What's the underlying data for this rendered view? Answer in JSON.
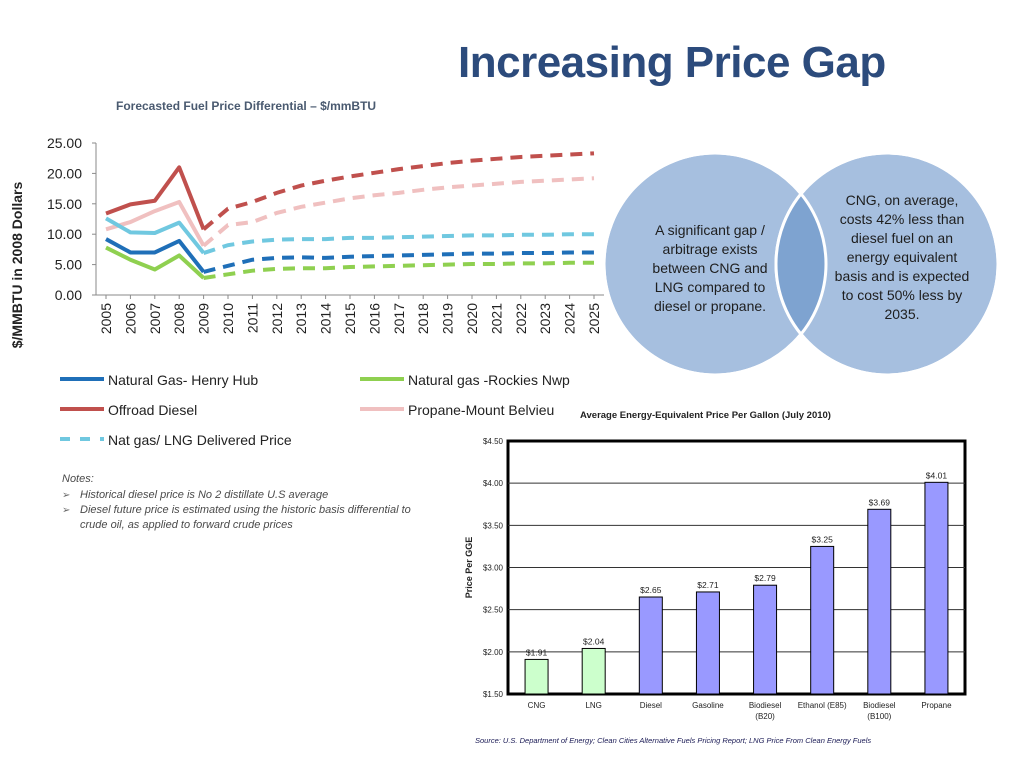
{
  "slide": {
    "title": "Increasing Price Gap",
    "line_chart_title": "Forecasted Fuel Price Differential – $/mmBTU",
    "notes": {
      "heading": "Notes:",
      "items": [
        "Historical diesel price is No 2 distillate U.S average",
        "Diesel future price is estimated using the historic basis differential to crude oil, as applied to forward crude prices"
      ]
    },
    "venn": {
      "left_text": "A significant gap / arbitrage exists between CNG and LNG compared to diesel or propane.",
      "right_text": "CNG, on average, costs 42% less than diesel fuel on an energy equivalent basis and is expected to cost 50% less by 2035."
    },
    "source": "Source: U.S. Department of Energy; Clean Cities Alternative Fuels Pricing Report; LNG Price From Clean Energy Fuels",
    "colors": {
      "title": "#2c4b7c",
      "henry_hub": "#1f6fb8",
      "rockies": "#8fd050",
      "offroad_diesel": "#c0504d",
      "propane": "#f0c0c0",
      "lng_delivered": "#70c8e0",
      "bar_green": "#ccffcc",
      "bar_blue": "#9999ff",
      "venn_fill": "#a6bfdf",
      "venn_overlap": "#7ea3d0"
    }
  },
  "chart_data": [
    {
      "type": "line",
      "title": "Forecasted Fuel Price Differential – $/mmBTU",
      "ylabel": "$/MMBTU in 2008 Dollars",
      "xlabel": "",
      "ylim": [
        0,
        25
      ],
      "yticks": [
        "0.00",
        "5.00",
        "10.00",
        "15.00",
        "20.00",
        "25.00"
      ],
      "x": [
        "2005",
        "2006",
        "2007",
        "2008",
        "2009",
        "2010",
        "2011",
        "2012",
        "2013",
        "2014",
        "2015",
        "2016",
        "2017",
        "2018",
        "2019",
        "2020",
        "2021",
        "2022",
        "2023",
        "2024",
        "2025"
      ],
      "historical_through": "2009",
      "series": [
        {
          "name": "Natural Gas- Henry Hub",
          "key": "henry_hub",
          "values": [
            9.2,
            7.0,
            7.0,
            8.9,
            3.8,
            4.8,
            5.8,
            6.1,
            6.2,
            6.1,
            6.3,
            6.4,
            6.5,
            6.6,
            6.7,
            6.8,
            6.8,
            6.9,
            6.9,
            7.0,
            7.0
          ]
        },
        {
          "name": "Natural gas -Rockies Nwp",
          "key": "rockies",
          "values": [
            7.8,
            5.8,
            4.2,
            6.5,
            2.8,
            3.4,
            4.0,
            4.3,
            4.4,
            4.4,
            4.6,
            4.7,
            4.8,
            4.9,
            5.0,
            5.1,
            5.1,
            5.2,
            5.2,
            5.3,
            5.3
          ]
        },
        {
          "name": "Offroad Diesel",
          "key": "offroad_diesel",
          "values": [
            13.4,
            14.9,
            15.5,
            21.0,
            10.8,
            14.2,
            15.3,
            16.8,
            18.0,
            18.8,
            19.5,
            20.1,
            20.7,
            21.2,
            21.7,
            22.1,
            22.4,
            22.7,
            22.9,
            23.1,
            23.3
          ]
        },
        {
          "name": "Propane-Mount Belvieu",
          "key": "propane",
          "values": [
            10.8,
            12.0,
            13.8,
            15.3,
            8.1,
            11.5,
            12.0,
            13.5,
            14.5,
            15.2,
            15.9,
            16.4,
            16.8,
            17.3,
            17.7,
            18.0,
            18.3,
            18.6,
            18.8,
            19.0,
            19.2
          ]
        },
        {
          "name": "Nat gas/ LNG Delivered Price",
          "key": "lng_delivered",
          "values": [
            12.6,
            10.3,
            10.2,
            11.9,
            6.9,
            8.2,
            8.8,
            9.1,
            9.2,
            9.2,
            9.4,
            9.4,
            9.5,
            9.6,
            9.7,
            9.8,
            9.8,
            9.9,
            9.9,
            10.0,
            10.0
          ]
        }
      ],
      "legend": "bottom"
    },
    {
      "type": "bar",
      "title": "Average Energy-Equivalent Price Per Gallon (July 2010)",
      "xlabel": "",
      "ylabel": "Price Per GGE",
      "ylim": [
        1.5,
        4.5
      ],
      "yticks": [
        "$1.50",
        "$2.00",
        "$2.50",
        "$3.00",
        "$3.50",
        "$4.00",
        "$4.50"
      ],
      "categories": [
        [
          "CNG"
        ],
        [
          "LNG"
        ],
        [
          "Diesel"
        ],
        [
          "Gasoline"
        ],
        [
          "Biodiesel",
          "(B20)"
        ],
        [
          "Ethanol (E85)"
        ],
        [
          "Biodiesel",
          "(B100)"
        ],
        [
          "Propane"
        ]
      ],
      "values": [
        1.91,
        2.04,
        2.65,
        2.71,
        2.79,
        3.25,
        3.69,
        4.01
      ],
      "labels": [
        "$1.91",
        "$2.04",
        "$2.65",
        "$2.71",
        "$2.79",
        "$3.25",
        "$3.69",
        "$4.01"
      ],
      "colors": [
        "green",
        "green",
        "blue",
        "blue",
        "blue",
        "blue",
        "blue",
        "blue"
      ]
    }
  ]
}
